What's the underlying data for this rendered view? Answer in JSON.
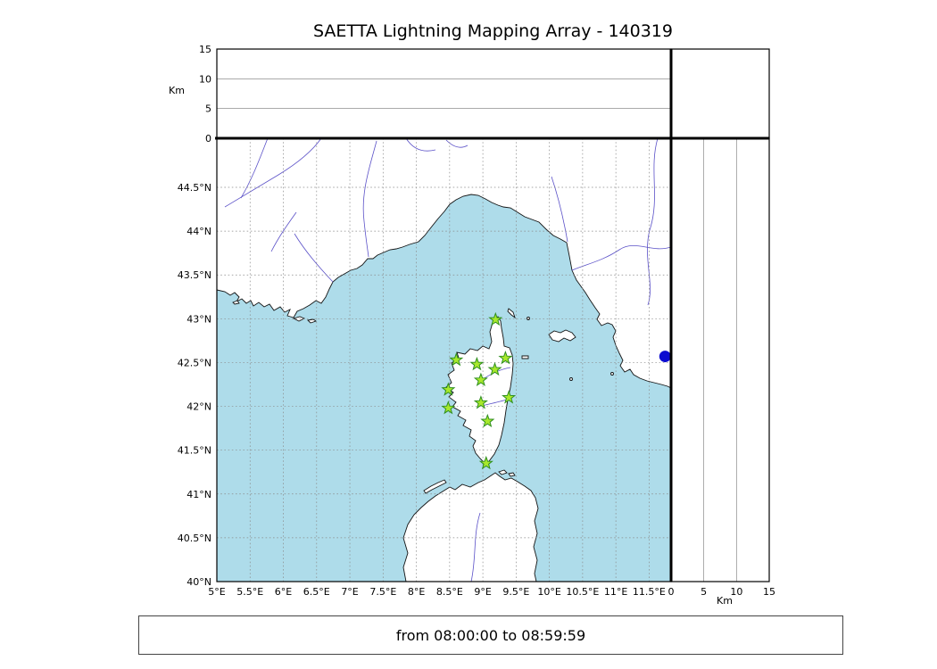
{
  "title": "SAETTA Lightning Mapping Array - 140319",
  "caption": "from 08:00:00 to 08:59:59",
  "top_panel": {
    "axis_label": "Km",
    "tick_labels": [
      "0",
      "5",
      "10",
      "15"
    ]
  },
  "right_panel": {
    "axis_label": "Km",
    "tick_labels": [
      "0",
      "5",
      "10",
      "15"
    ]
  },
  "map": {
    "lon_tick_labels": [
      "5°E",
      "5.5°E",
      "6°E",
      "6.5°E",
      "7°E",
      "7.5°E",
      "8°E",
      "8.5°E",
      "9°E",
      "9.5°E",
      "10°E",
      "10.5°E",
      "11°E",
      "11.5°E"
    ],
    "lat_tick_labels": [
      "40°N",
      "40.5°N",
      "41°N",
      "41.5°N",
      "42°N",
      "42.5°N",
      "43°N",
      "43.5°N",
      "44°N",
      "44.5°N"
    ],
    "sea_color": "#aedcea",
    "land_color": "#ffffff",
    "river_color": "#5b51c8",
    "grid_color": "#8a8a8a",
    "station_fill": "#a8e82c",
    "station_edge": "#2f8f1f",
    "blue_marker_color": "#0b0bd0"
  },
  "chart_data": {
    "type": "scatter",
    "title": "SAETTA Lightning Mapping Array - 140319",
    "caption": "from 08:00:00 to 08:59:59",
    "description": "Lightning Mapping Array station map of Corsica with empty altitude-vs-longitude (top) and altitude-vs-latitude (right) panels",
    "lon_axis": {
      "ticks": [
        5,
        5.5,
        6,
        6.5,
        7,
        7.5,
        8,
        8.5,
        9,
        9.5,
        10,
        10.5,
        11,
        11.5
      ],
      "range": [
        5,
        11.83
      ]
    },
    "lat_axis": {
      "ticks": [
        40,
        40.5,
        41,
        41.5,
        42,
        42.5,
        43,
        43.5,
        44,
        44.5
      ],
      "range": [
        40,
        45.06
      ]
    },
    "altitude_axis": {
      "label": "Km",
      "ticks": [
        0,
        5,
        10,
        15
      ],
      "inner_lines": [
        5,
        10
      ],
      "range": [
        0,
        15
      ]
    },
    "stations_lonlat": [
      [
        9.19,
        42.99
      ],
      [
        8.6,
        42.53
      ],
      [
        8.91,
        42.48
      ],
      [
        9.34,
        42.55
      ],
      [
        9.18,
        42.42
      ],
      [
        8.97,
        42.3
      ],
      [
        8.48,
        42.19
      ],
      [
        9.39,
        42.1
      ],
      [
        8.48,
        41.98
      ],
      [
        8.97,
        42.04
      ],
      [
        9.07,
        41.83
      ],
      [
        9.05,
        41.35
      ]
    ],
    "blue_marker_lonlat": [
      11.74,
      42.57
    ],
    "grid": true,
    "legend": false
  }
}
